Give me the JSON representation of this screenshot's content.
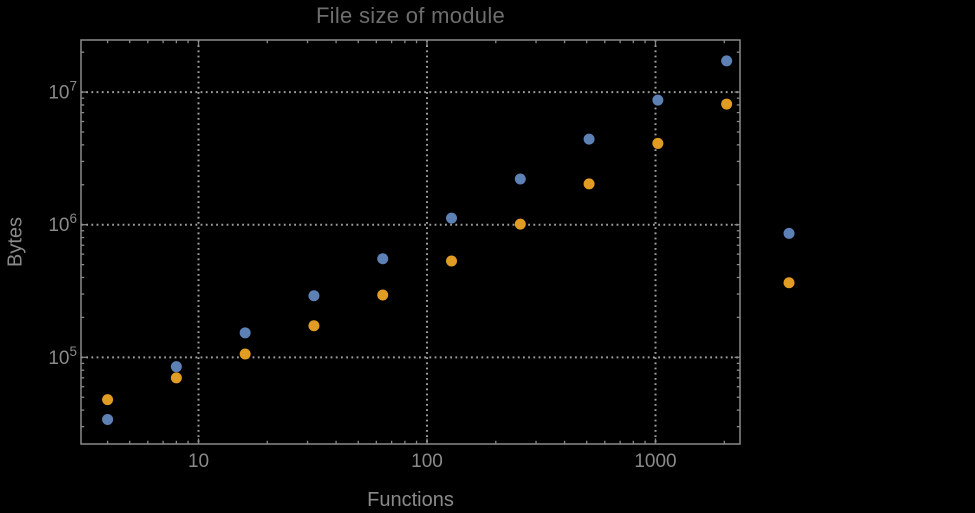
{
  "chart_data": {
    "type": "scatter",
    "title": "File size of module",
    "xlabel": "Functions",
    "ylabel": "Bytes",
    "x_scale": "log",
    "y_scale": "log",
    "grid": "dotted-major",
    "legend": "none",
    "xlim": [
      3.06,
      2343
    ],
    "ylim": [
      22200,
      24700000
    ],
    "marker_radius": 5.5,
    "x": [
      4,
      8,
      16,
      32,
      64,
      128,
      256,
      512,
      1024,
      2048,
      3840
    ],
    "series": [
      {
        "name": "blue",
        "color": "#5E81B5",
        "values": [
          34000,
          85000,
          153000,
          291000,
          554000,
          1120000,
          2210000,
          4420000,
          8700000,
          17200000,
          860000
        ]
      },
      {
        "name": "orange",
        "color": "#E19C24",
        "values": [
          48000,
          70000,
          106000,
          173000,
          295000,
          532000,
          1010000,
          2030000,
          4100000,
          8120000,
          365000
        ]
      }
    ],
    "x_major_ticks": [
      {
        "label": "10",
        "value": 10
      },
      {
        "label": "100",
        "value": 100
      },
      {
        "label": "1000",
        "value": 1000
      }
    ],
    "y_major_ticks": [
      {
        "base": "10",
        "exp": "5",
        "value": 100000
      },
      {
        "base": "10",
        "exp": "6",
        "value": 1000000
      },
      {
        "base": "10",
        "exp": "7",
        "value": 10000000
      }
    ],
    "colors": {
      "background": "#000000",
      "frame": "#8a8a8a",
      "grid": "#9e9e9e",
      "tick_text": "#8a8a8a",
      "title_text": "#6e6e6e"
    }
  }
}
